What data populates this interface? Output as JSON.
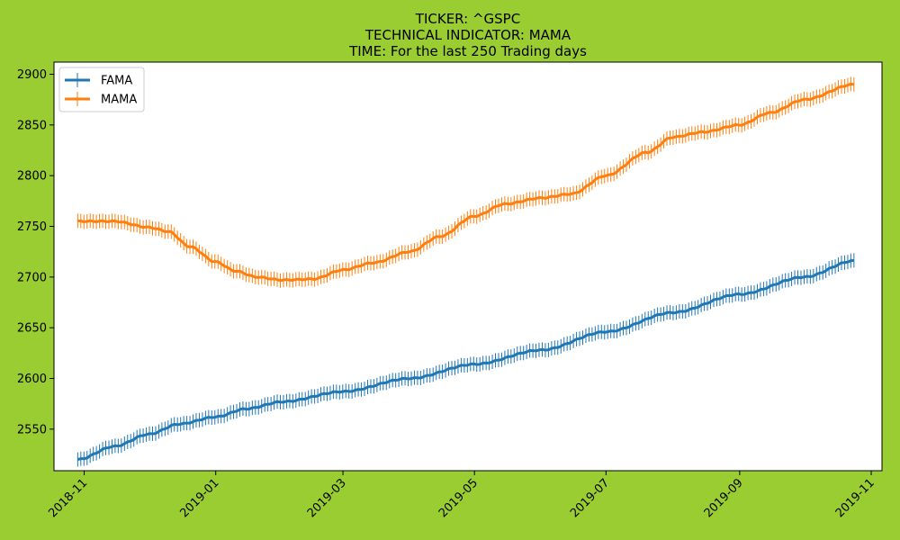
{
  "chart_data": {
    "type": "line",
    "title_lines": [
      "TICKER:  ^GSPC",
      "TECHNICAL INDICATOR:  MAMA",
      "TIME: For the last 250 Trading days"
    ],
    "xlabel": "",
    "ylabel": "",
    "x_range": [
      "2018-10-18",
      "2019-11-06"
    ],
    "ylim": [
      2509,
      2912
    ],
    "x_ticks": [
      "2018-11",
      "2019-01",
      "2019-03",
      "2019-05",
      "2019-07",
      "2019-09",
      "2019-11"
    ],
    "y_ticks": [
      2550,
      2600,
      2650,
      2700,
      2750,
      2800,
      2850,
      2900
    ],
    "grid": false,
    "legend_position": "top-left",
    "marker": "vertical-bar",
    "series": [
      {
        "name": "FAMA",
        "color": "#1f77b4",
        "x_start": "2018-10-29",
        "x_end": "2019-10-24",
        "count": 250,
        "control_points": [
          [
            "2018-10-29",
            2520
          ],
          [
            "2018-11-15",
            2533
          ],
          [
            "2018-12-01",
            2545
          ],
          [
            "2018-12-15",
            2555
          ],
          [
            "2019-01-01",
            2562
          ],
          [
            "2019-01-15",
            2570
          ],
          [
            "2019-02-01",
            2577
          ],
          [
            "2019-03-01",
            2587
          ],
          [
            "2019-04-01",
            2600
          ],
          [
            "2019-05-01",
            2614
          ],
          [
            "2019-06-01",
            2628
          ],
          [
            "2019-07-01",
            2646
          ],
          [
            "2019-08-01",
            2665
          ],
          [
            "2019-09-01",
            2683
          ],
          [
            "2019-10-01",
            2700
          ],
          [
            "2019-10-24",
            2716
          ]
        ]
      },
      {
        "name": "MAMA",
        "color": "#ff7f0e",
        "x_start": "2018-10-29",
        "x_end": "2019-10-24",
        "count": 250,
        "control_points": [
          [
            "2018-10-29",
            2755
          ],
          [
            "2018-11-15",
            2755
          ],
          [
            "2018-12-01",
            2749
          ],
          [
            "2018-12-10",
            2745
          ],
          [
            "2018-12-20",
            2730
          ],
          [
            "2019-01-01",
            2715
          ],
          [
            "2019-01-10",
            2706
          ],
          [
            "2019-01-20",
            2700
          ],
          [
            "2019-02-01",
            2697
          ],
          [
            "2019-02-15",
            2698
          ],
          [
            "2019-03-01",
            2707
          ],
          [
            "2019-03-15",
            2714
          ],
          [
            "2019-04-01",
            2725
          ],
          [
            "2019-04-15",
            2740
          ],
          [
            "2019-05-01",
            2760
          ],
          [
            "2019-05-15",
            2772
          ],
          [
            "2019-06-01",
            2778
          ],
          [
            "2019-06-15",
            2782
          ],
          [
            "2019-07-01",
            2800
          ],
          [
            "2019-07-20",
            2823
          ],
          [
            "2019-08-01",
            2838
          ],
          [
            "2019-08-15",
            2843
          ],
          [
            "2019-09-01",
            2850
          ],
          [
            "2019-09-15",
            2862
          ],
          [
            "2019-10-01",
            2875
          ],
          [
            "2019-10-24",
            2890
          ]
        ]
      }
    ]
  }
}
